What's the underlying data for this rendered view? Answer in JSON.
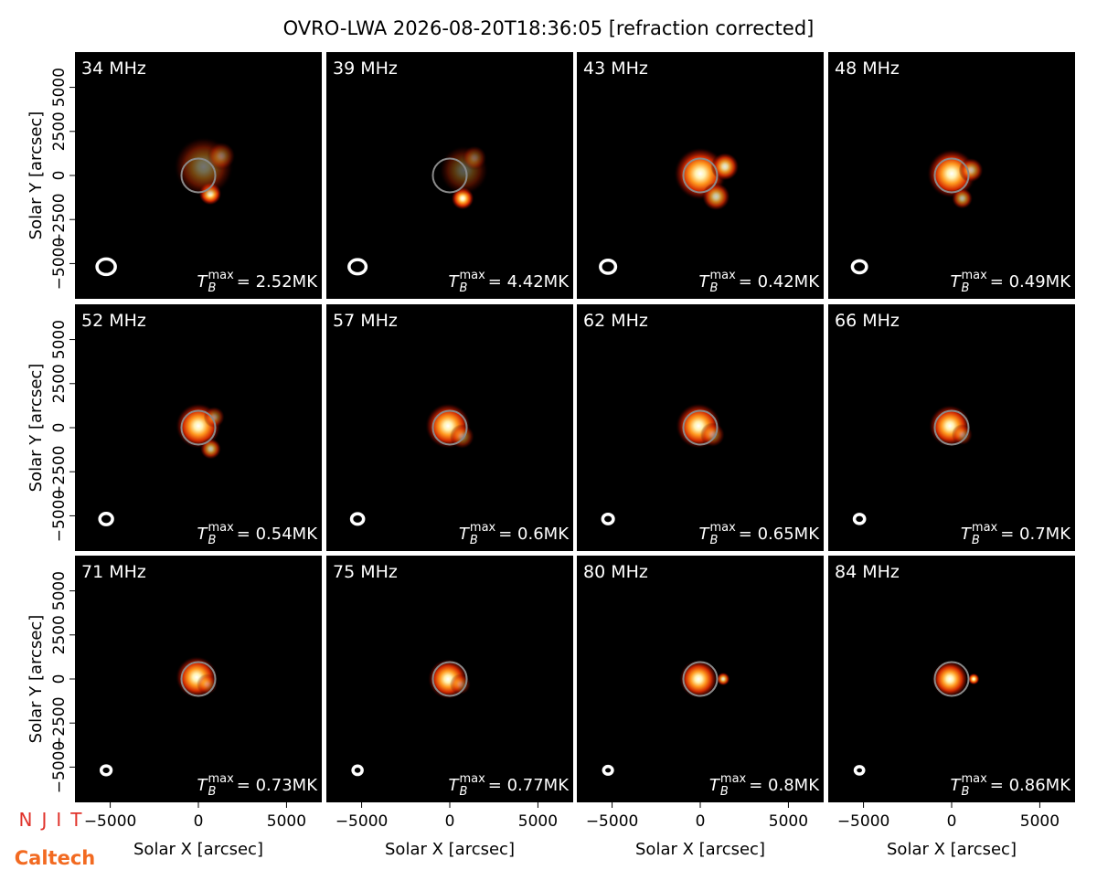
{
  "chart_data": {
    "type": "image_grid",
    "title": "OVRO-LWA 2026-08-20T18:36:05 [refraction corrected]",
    "xlabel": "Solar X [arcsec]",
    "ylabel": "Solar Y [arcsec]",
    "xlim": [
      -7000,
      7000
    ],
    "ylim": [
      -7000,
      7000
    ],
    "xticks": [
      {
        "value": -5000,
        "label": "−5000"
      },
      0,
      5000
    ],
    "yticks": [
      {
        "value": -5000,
        "label": "−5000"
      },
      {
        "value": -2500,
        "label": "−2500"
      },
      0,
      2500,
      5000
    ],
    "disk_radius": 960,
    "disk_color": "#8a8a8a",
    "tb_symbol": "T",
    "tb_sub": "B",
    "tb_sup": "max",
    "panels": [
      {
        "label": "34 MHz",
        "tb_max_label": "= 2.52MK",
        "beam": {
          "x": -5230,
          "y": -5180,
          "rx": 520,
          "ry": 440
        },
        "sources": [
          {
            "x": 670,
            "y": -1040,
            "r": 650,
            "amp": 1
          },
          {
            "x": 300,
            "y": 500,
            "r": 1700,
            "amp": 0.45
          },
          {
            "x": 1300,
            "y": 1100,
            "r": 800,
            "amp": 0.4
          }
        ]
      },
      {
        "label": "39 MHz",
        "tb_max_label": "= 4.42MK",
        "beam": {
          "x": -5230,
          "y": -5180,
          "rx": 480,
          "ry": 400
        },
        "sources": [
          {
            "x": 730,
            "y": -1300,
            "r": 650,
            "amp": 1
          },
          {
            "x": 800,
            "y": 300,
            "r": 1400,
            "amp": 0.35
          },
          {
            "x": 1400,
            "y": 1000,
            "r": 700,
            "amp": 0.35
          }
        ]
      },
      {
        "label": "43 MHz",
        "tb_max_label": "= 0.42MK",
        "beam": {
          "x": -5230,
          "y": -5180,
          "rx": 430,
          "ry": 370
        },
        "sources": [
          {
            "x": 0,
            "y": 100,
            "r": 1500,
            "amp": 1
          },
          {
            "x": 1400,
            "y": 500,
            "r": 800,
            "amp": 0.9
          },
          {
            "x": 900,
            "y": -1200,
            "r": 800,
            "amp": 0.8
          }
        ]
      },
      {
        "label": "48 MHz",
        "tb_max_label": "= 0.49MK",
        "beam": {
          "x": -5230,
          "y": -5180,
          "rx": 400,
          "ry": 340
        },
        "sources": [
          {
            "x": 0,
            "y": 100,
            "r": 1400,
            "amp": 1
          },
          {
            "x": 1100,
            "y": 300,
            "r": 700,
            "amp": 0.7
          },
          {
            "x": 600,
            "y": -1300,
            "r": 600,
            "amp": 0.7
          }
        ]
      },
      {
        "label": "52 MHz",
        "tb_max_label": "= 0.54MK",
        "beam": {
          "x": -5230,
          "y": -5180,
          "rx": 360,
          "ry": 320
        },
        "sources": [
          {
            "x": 0,
            "y": 100,
            "r": 1300,
            "amp": 1
          },
          {
            "x": 700,
            "y": -1200,
            "r": 600,
            "amp": 0.75
          },
          {
            "x": 900,
            "y": 600,
            "r": 600,
            "amp": 0.5
          }
        ]
      },
      {
        "label": "57 MHz",
        "tb_max_label": "= 0.6MK",
        "beam": {
          "x": -5230,
          "y": -5180,
          "rx": 340,
          "ry": 300
        },
        "sources": [
          {
            "x": -100,
            "y": 100,
            "r": 1300,
            "amp": 1
          },
          {
            "x": 700,
            "y": -500,
            "r": 700,
            "amp": 0.5
          }
        ]
      },
      {
        "label": "62 MHz",
        "tb_max_label": "= 0.65MK",
        "beam": {
          "x": -5230,
          "y": -5180,
          "rx": 300,
          "ry": 270
        },
        "sources": [
          {
            "x": -100,
            "y": 100,
            "r": 1300,
            "amp": 1
          },
          {
            "x": 700,
            "y": -400,
            "r": 700,
            "amp": 0.5
          }
        ]
      },
      {
        "label": "66 MHz",
        "tb_max_label": "= 0.7MK",
        "beam": {
          "x": -5230,
          "y": -5180,
          "rx": 290,
          "ry": 260
        },
        "sources": [
          {
            "x": -100,
            "y": 100,
            "r": 1200,
            "amp": 1
          },
          {
            "x": 600,
            "y": -400,
            "r": 600,
            "amp": 0.45
          }
        ]
      },
      {
        "label": "71 MHz",
        "tb_max_label": "= 0.73MK",
        "beam": {
          "x": -5230,
          "y": -5180,
          "rx": 280,
          "ry": 250
        },
        "sources": [
          {
            "x": -100,
            "y": 100,
            "r": 1200,
            "amp": 1
          },
          {
            "x": 500,
            "y": -300,
            "r": 600,
            "amp": 0.4
          }
        ]
      },
      {
        "label": "75 MHz",
        "tb_max_label": "= 0.77MK",
        "beam": {
          "x": -5230,
          "y": -5180,
          "rx": 260,
          "ry": 240
        },
        "sources": [
          {
            "x": -100,
            "y": 0,
            "r": 1150,
            "amp": 1
          },
          {
            "x": 600,
            "y": -300,
            "r": 600,
            "amp": 0.4
          }
        ]
      },
      {
        "label": "80 MHz",
        "tb_max_label": "= 0.8MK",
        "beam": {
          "x": -5230,
          "y": -5180,
          "rx": 250,
          "ry": 220
        },
        "sources": [
          {
            "x": -100,
            "y": 0,
            "r": 1100,
            "amp": 1
          },
          {
            "x": 1300,
            "y": 0,
            "r": 380,
            "amp": 0.9
          }
        ]
      },
      {
        "label": "84 MHz",
        "tb_max_label": "= 0.86MK",
        "beam": {
          "x": -5230,
          "y": -5180,
          "rx": 240,
          "ry": 210
        },
        "sources": [
          {
            "x": -100,
            "y": 0,
            "r": 1050,
            "amp": 1
          },
          {
            "x": 1250,
            "y": 0,
            "r": 330,
            "amp": 1
          }
        ]
      }
    ]
  },
  "logos": {
    "njit": "NJIT",
    "caltech": "Caltech"
  }
}
